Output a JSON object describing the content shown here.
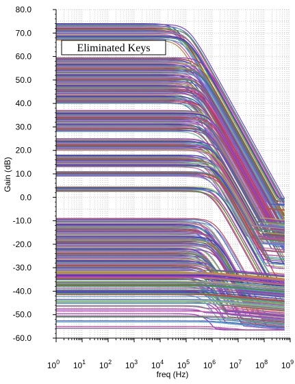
{
  "chart_data": {
    "type": "line",
    "title": "",
    "xlabel": "freq (Hz)",
    "ylabel": "Gain (dB)",
    "x_scale": "log",
    "xlim": [
      1,
      1000000000
    ],
    "ylim": [
      -60,
      80
    ],
    "x_ticks": [
      {
        "base": "10",
        "exp": "0",
        "value": 1
      },
      {
        "base": "10",
        "exp": "1",
        "value": 10
      },
      {
        "base": "10",
        "exp": "2",
        "value": 100
      },
      {
        "base": "10",
        "exp": "3",
        "value": 1000
      },
      {
        "base": "10",
        "exp": "4",
        "value": 10000
      },
      {
        "base": "10",
        "exp": "5",
        "value": 100000
      },
      {
        "base": "10",
        "exp": "6",
        "value": 1000000
      },
      {
        "base": "10",
        "exp": "7",
        "value": 10000000
      },
      {
        "base": "10",
        "exp": "8",
        "value": 100000000
      },
      {
        "base": "10",
        "exp": "9",
        "value": 1000000000
      }
    ],
    "y_ticks": [
      {
        "label": "80.0",
        "value": 80
      },
      {
        "label": "70.0",
        "value": 70
      },
      {
        "label": "60.0",
        "value": 60
      },
      {
        "label": "50.0",
        "value": 50
      },
      {
        "label": "40.0",
        "value": 40
      },
      {
        "label": "30.0",
        "value": 30
      },
      {
        "label": "20.0",
        "value": 20
      },
      {
        "label": "10.0",
        "value": 10
      },
      {
        "label": "0.0",
        "value": 0
      },
      {
        "label": "-10.0",
        "value": -10
      },
      {
        "label": "-20.0",
        "value": -20
      },
      {
        "label": "-30.0",
        "value": -30
      },
      {
        "label": "-40.0",
        "value": -40
      },
      {
        "label": "-50.0",
        "value": -50
      },
      {
        "label": "-60.0",
        "value": -60
      }
    ],
    "grid": true,
    "x_end": 600000000,
    "annotation": "Eliminated Keys",
    "curve_groups": [
      {
        "gain_range": [
          67,
          74
        ],
        "count": 22,
        "corner_hz": 70000,
        "end_gain_range": [
          -8,
          0
        ]
      },
      {
        "gain_range": [
          40,
          59.5
        ],
        "count": 70,
        "corner_hz": 250000,
        "end_gain_range": [
          -38,
          -2
        ]
      },
      {
        "gain_range": [
          28,
          37
        ],
        "count": 32,
        "corner_hz": 600000,
        "end_gain_range": [
          -22,
          -8
        ]
      },
      {
        "gain_range": [
          20,
          25
        ],
        "count": 20,
        "corner_hz": 900000,
        "end_gain_range": [
          -20,
          -10
        ]
      },
      {
        "gain_range": [
          13,
          18
        ],
        "count": 20,
        "corner_hz": 1000000,
        "end_gain_range": [
          -30,
          -12
        ]
      },
      {
        "gain_range": [
          9,
          11
        ],
        "count": 10,
        "corner_hz": 1200000,
        "end_gain_range": [
          -40,
          -22
        ]
      },
      {
        "gain_range": [
          2.5,
          4.5
        ],
        "count": 10,
        "corner_hz": 1500000,
        "end_gain_range": [
          -45,
          -35
        ]
      },
      {
        "gain_range": [
          -57,
          -9
        ],
        "count": 150,
        "corner_hz": 800000,
        "end_gain_range": [
          -56,
          -30
        ]
      }
    ],
    "series_colors": [
      "#1f3fbf",
      "#7f3fd0",
      "#2fa05a",
      "#d04f9f",
      "#3f9fd0",
      "#bf7f2f",
      "#9f2fbf",
      "#4f8f3f",
      "#d03f3f",
      "#3f5fcf",
      "#8f4fbf",
      "#5fbf9f",
      "#bf3f8f",
      "#6f7fdf",
      "#9fbf3f",
      "#d0609f"
    ]
  }
}
